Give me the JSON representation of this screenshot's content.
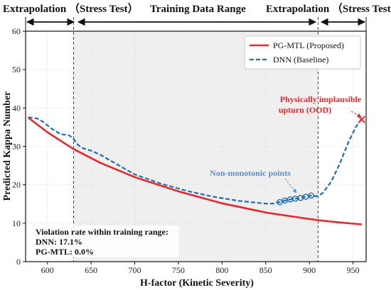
{
  "header": {
    "left_label": "Extrapolation （Stress Test）",
    "middle_label": "Training Data Range",
    "right_label": "Extrapolation （Stress Test）"
  },
  "legend": {
    "pgmtl": "PG-MTL (Proposed)",
    "dnn": "DNN (Baseline)",
    "placement": "top-right"
  },
  "annotations": {
    "implausible_line1": "Physically implausible",
    "implausible_line2": "upturn (OOD)",
    "nonmonotonic": "Non-monotonic points"
  },
  "violation_box": {
    "line1": "Violation rate within training range:",
    "line2": "DNN: 17.1%",
    "line3": "PG-MTL: 0.0%"
  },
  "colors": {
    "pgmtl": "#e8262b",
    "dnn": "#1f6fae",
    "shade": "#efefef",
    "implausible": "#e8262b",
    "nonmonotonic": "#5b8fd1"
  },
  "chart_data": {
    "type": "line",
    "xlabel": "H-factor (Kinetic Severity)",
    "ylabel": "Predicted Kappa Number",
    "xlim": [
      575,
      965
    ],
    "ylim": [
      0,
      60
    ],
    "xticks": [
      600,
      650,
      700,
      750,
      800,
      850,
      900,
      950
    ],
    "yticks": [
      0,
      10,
      20,
      30,
      40,
      50,
      60
    ],
    "grid": true,
    "training_range": [
      630,
      910
    ],
    "series": [
      {
        "name": "PG-MTL (Proposed)",
        "style": "solid",
        "x": [
          578,
          600,
          630,
          660,
          700,
          750,
          800,
          850,
          900,
          910,
          930,
          960
        ],
        "y": [
          37.5,
          33.7,
          29.3,
          25.8,
          22.0,
          18.3,
          15.2,
          12.8,
          11.1,
          10.8,
          10.3,
          9.7
        ]
      },
      {
        "name": "DNN (Baseline)",
        "style": "dashed",
        "x": [
          578,
          588,
          595,
          605,
          615,
          625,
          630,
          635,
          640,
          650,
          660,
          680,
          700,
          730,
          760,
          790,
          820,
          850,
          858,
          866,
          872,
          878,
          884,
          890,
          896,
          902,
          908,
          915,
          925,
          935,
          945,
          953,
          960
        ],
        "y": [
          37.6,
          37.3,
          36.4,
          34.6,
          33.2,
          32.9,
          31.9,
          30.4,
          29.6,
          28.9,
          27.9,
          25.3,
          22.7,
          20.3,
          18.4,
          16.9,
          15.8,
          15.1,
          15.1,
          15.5,
          15.9,
          16.2,
          16.4,
          16.6,
          16.9,
          17.2,
          17.0,
          17.8,
          20.8,
          25.6,
          31.2,
          35.0,
          37.2
        ]
      }
    ],
    "nonmonotonic_points": {
      "x": [
        866,
        872,
        878,
        884,
        890,
        896,
        902
      ],
      "y": [
        15.5,
        15.9,
        16.2,
        16.4,
        16.6,
        16.9,
        17.2
      ]
    },
    "implausible_marker": {
      "x": 960,
      "y": 37.0
    }
  }
}
